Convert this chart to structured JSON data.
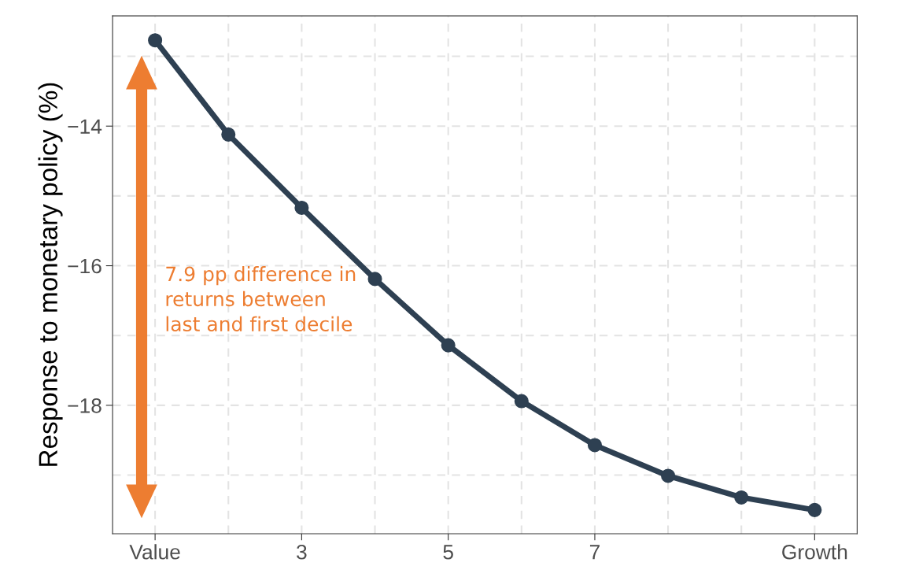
{
  "chart_data": {
    "type": "line",
    "ylabel": "Response to monetary policy (%)",
    "x": [
      1,
      2,
      3,
      4,
      5,
      6,
      7,
      8,
      9,
      10
    ],
    "series": [
      {
        "color": "#2e4052",
        "values": [
          -12.77,
          -14.12,
          -15.17,
          -16.19,
          -17.14,
          -17.94,
          -18.57,
          -19.01,
          -19.32,
          -19.5
        ]
      }
    ],
    "xlim": [
      0.42,
      10.58
    ],
    "xticks": [
      {
        "value": 1,
        "label": "Value"
      },
      3,
      5,
      7,
      {
        "value": 10,
        "label": "Growth"
      }
    ],
    "ylim": [
      -19.84,
      -12.42
    ],
    "yticks": [
      {
        "value": -14,
        "label": "−14"
      },
      {
        "value": -16,
        "label": "−16"
      },
      {
        "value": -18,
        "label": "−18"
      }
    ],
    "grid": true,
    "marker": "circle",
    "line_style": "solid",
    "annotations": [
      "7.9 pp difference in\nreturns between\nlast and first decile"
    ]
  }
}
